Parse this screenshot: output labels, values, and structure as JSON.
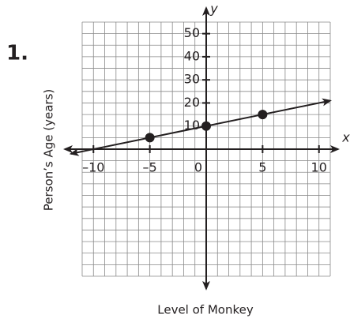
{
  "problem_number": "1.",
  "chart_data": {
    "type": "line",
    "xlabel": "Level of Monkey",
    "ylabel": "Person’s Age (years)",
    "x_axis_name": "x",
    "y_axis_name": "y",
    "xlim": [
      -11,
      11
    ],
    "ylim": [
      -55,
      55
    ],
    "xticks": [
      {
        "value": -10,
        "label": "–10"
      },
      {
        "value": -5,
        "label": "–5"
      },
      0,
      5,
      10
    ],
    "yticks": [
      10,
      20,
      30,
      40,
      50
    ],
    "grid": true,
    "line": {
      "color": "#231f20",
      "x": [
        -12,
        11
      ],
      "values": [
        -2,
        21
      ]
    },
    "points": {
      "color": "#231f20",
      "x": [
        -5,
        0,
        5
      ],
      "values": [
        5,
        10,
        15
      ]
    }
  }
}
